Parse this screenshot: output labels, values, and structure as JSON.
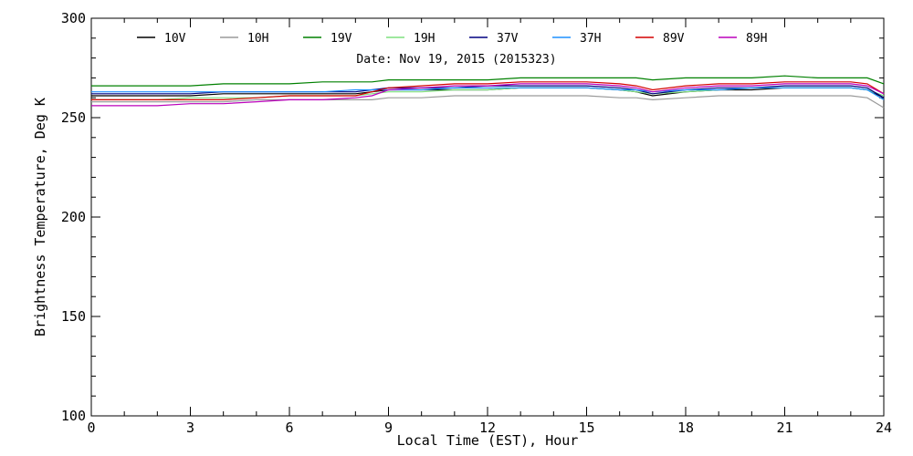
{
  "chart_data": {
    "type": "line",
    "title": "Date: Nov 19, 2015 (2015323)",
    "xlabel": "Local Time (EST), Hour",
    "ylabel": "Brightness Temperature, Deg K",
    "xlim": [
      0,
      24
    ],
    "ylim": [
      100,
      300
    ],
    "x_major_ticks": [
      0,
      3,
      6,
      9,
      12,
      15,
      18,
      21,
      24
    ],
    "y_major_ticks": [
      100,
      150,
      200,
      250,
      300
    ],
    "x_tick_labels": [
      "0",
      "3",
      "6",
      "9",
      "12",
      "15",
      "18",
      "21",
      "24"
    ],
    "y_tick_labels": [
      "100",
      "150",
      "200",
      "250",
      "300"
    ],
    "grid": false,
    "legend_placement": "top",
    "x": [
      0,
      1,
      2,
      3,
      4,
      5,
      6,
      7,
      8,
      8.5,
      9,
      10,
      11,
      12,
      13,
      14,
      15,
      16,
      16.5,
      17,
      18,
      19,
      20,
      21,
      22,
      23,
      23.5,
      24
    ],
    "series": [
      {
        "name": "10V",
        "color": "#000000",
        "values": [
          261,
          261,
          261,
          261,
          262,
          262,
          262,
          262,
          262,
          263,
          264,
          264,
          264,
          264,
          265,
          265,
          265,
          264,
          263,
          261,
          263,
          264,
          264,
          265,
          265,
          265,
          264,
          260
        ]
      },
      {
        "name": "10H",
        "color": "#9a9a9a",
        "values": [
          258,
          258,
          258,
          258,
          258,
          259,
          259,
          259,
          259,
          259,
          260,
          260,
          261,
          261,
          261,
          261,
          261,
          260,
          260,
          259,
          260,
          261,
          261,
          261,
          261,
          261,
          260,
          255
        ]
      },
      {
        "name": "19V",
        "color": "#008000",
        "values": [
          266,
          266,
          266,
          266,
          267,
          267,
          267,
          268,
          268,
          268,
          269,
          269,
          269,
          269,
          270,
          270,
          270,
          270,
          270,
          269,
          270,
          270,
          270,
          271,
          270,
          270,
          270,
          267
        ]
      },
      {
        "name": "19H",
        "color": "#7fe07f",
        "values": [
          259,
          259,
          259,
          260,
          260,
          260,
          261,
          261,
          261,
          262,
          263,
          263,
          264,
          264,
          265,
          265,
          265,
          264,
          263,
          262,
          263,
          264,
          265,
          265,
          265,
          265,
          264,
          261
        ]
      },
      {
        "name": "37V",
        "color": "#000080",
        "values": [
          262,
          262,
          262,
          262,
          263,
          263,
          263,
          263,
          263,
          264,
          265,
          265,
          265,
          266,
          266,
          266,
          266,
          265,
          264,
          262,
          264,
          265,
          265,
          266,
          266,
          266,
          265,
          260
        ]
      },
      {
        "name": "37H",
        "color": "#1e90ff",
        "values": [
          263,
          263,
          263,
          263,
          263,
          263,
          263,
          263,
          264,
          264,
          264,
          264,
          265,
          265,
          265,
          265,
          265,
          264,
          264,
          263,
          264,
          264,
          265,
          265,
          265,
          265,
          264,
          259
        ]
      },
      {
        "name": "89V",
        "color": "#d40000",
        "values": [
          259,
          259,
          259,
          259,
          259,
          260,
          261,
          261,
          261,
          263,
          265,
          266,
          267,
          267,
          268,
          268,
          268,
          267,
          266,
          264,
          266,
          267,
          267,
          268,
          268,
          268,
          267,
          262
        ]
      },
      {
        "name": "89H",
        "color": "#bb00bb",
        "values": [
          256,
          256,
          256,
          257,
          257,
          258,
          259,
          259,
          260,
          261,
          264,
          265,
          266,
          266,
          267,
          267,
          267,
          266,
          265,
          263,
          265,
          266,
          266,
          267,
          267,
          267,
          266,
          262
        ]
      }
    ]
  }
}
